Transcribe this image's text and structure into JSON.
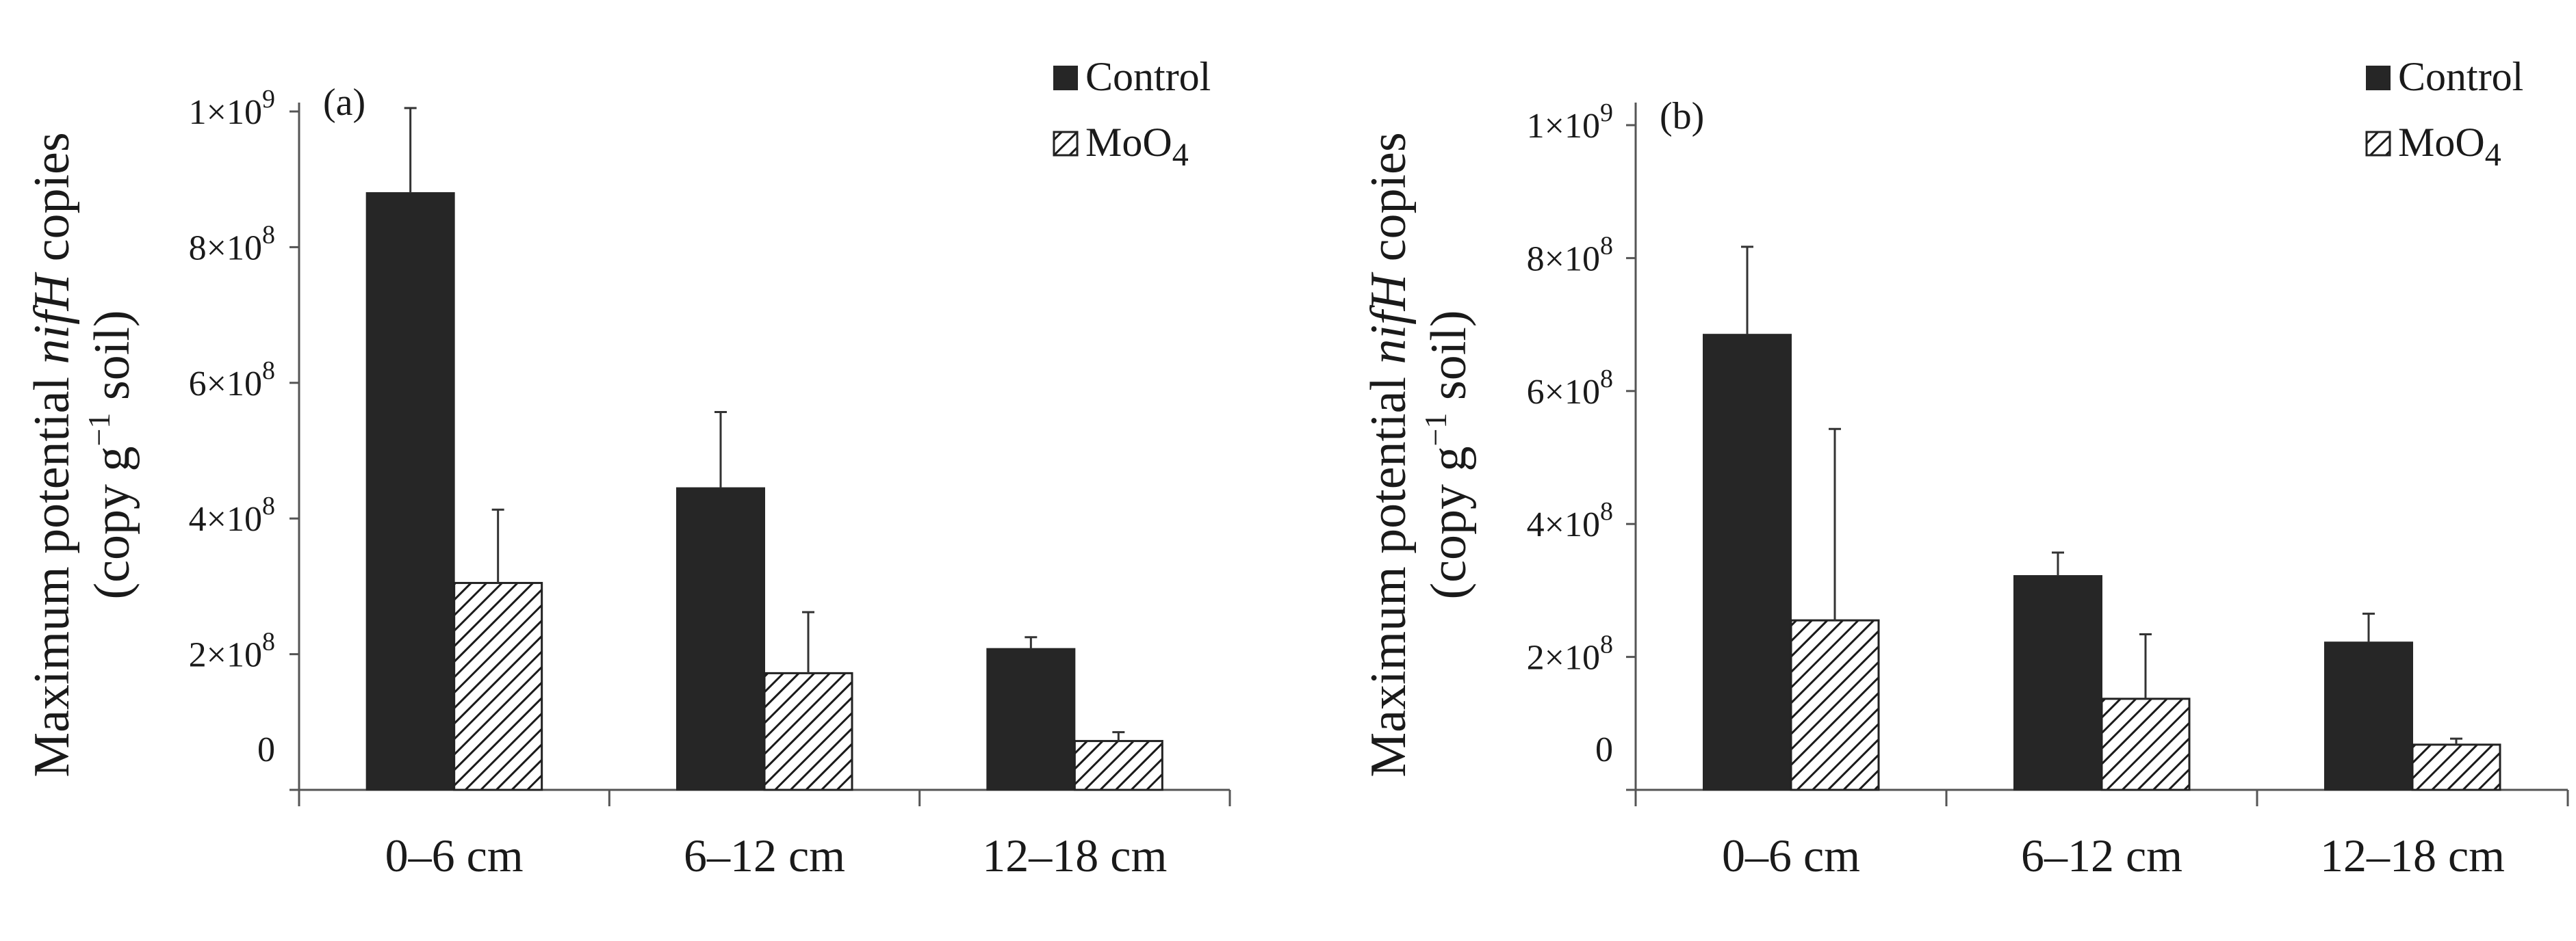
{
  "chart_data": [
    {
      "type": "bar",
      "panel_label": "(a)",
      "categories": [
        "0–6 cm",
        "6–12 cm",
        "12–18 cm"
      ],
      "series": [
        {
          "name": "Control",
          "values": [
            880000000,
            445000000,
            208000000
          ],
          "errors": [
            125000000,
            112000000,
            17000000
          ],
          "color": "#262626",
          "pattern": "solid"
        },
        {
          "name": "MoO4",
          "values": [
            305000000,
            172000000,
            72000000
          ],
          "errors": [
            108000000,
            90000000,
            13000000
          ],
          "color": "#ffffff",
          "pattern": "diagonal-hatch"
        }
      ],
      "ylabel_line1": {
        "pre": "Maximum potential ",
        "italic": "nifH",
        "post": " copies"
      },
      "ylabel_line2": {
        "pre": "(copy g",
        "sup": "−1",
        "post": " soil)"
      },
      "ytick_labels": [
        {
          "value": 0,
          "text": "0"
        },
        {
          "value": 200000000,
          "base": "2×10",
          "exp": "8"
        },
        {
          "value": 400000000,
          "base": "4×10",
          "exp": "8"
        },
        {
          "value": 600000000,
          "base": "6×10",
          "exp": "8"
        },
        {
          "value": 800000000,
          "base": "8×10",
          "exp": "8"
        },
        {
          "value": 1000000000,
          "base": "1×10",
          "exp": "9"
        }
      ],
      "ylim": [
        0,
        1000000000
      ],
      "legend": {
        "position": "top-right",
        "entries": [
          "Control",
          "MoO4"
        ]
      }
    },
    {
      "type": "bar",
      "panel_label": "(b)",
      "categories": [
        "0–6 cm",
        "6–12 cm",
        "12–18 cm"
      ],
      "series": [
        {
          "name": "Control",
          "values": [
            685000000,
            322000000,
            222000000
          ],
          "errors": [
            132000000,
            35000000,
            43000000
          ],
          "color": "#262626",
          "pattern": "solid"
        },
        {
          "name": "MoO4",
          "values": [
            255000000,
            137000000,
            68000000
          ],
          "errors": [
            288000000,
            97000000,
            9000000
          ],
          "color": "#ffffff",
          "pattern": "diagonal-hatch"
        }
      ],
      "ylabel_line1": {
        "pre": "Maximum potential ",
        "italic": "nifH",
        "post": " copies"
      },
      "ylabel_line2": {
        "pre": "(copy g",
        "sup": "−1",
        "post": " soil)"
      },
      "ytick_labels": [
        {
          "value": 0,
          "text": "0"
        },
        {
          "value": 200000000,
          "base": "2×10",
          "exp": "8"
        },
        {
          "value": 400000000,
          "base": "4×10",
          "exp": "8"
        },
        {
          "value": 600000000,
          "base": "6×10",
          "exp": "8"
        },
        {
          "value": 800000000,
          "base": "8×10",
          "exp": "8"
        },
        {
          "value": 1000000000,
          "base": "1×10",
          "exp": "9"
        }
      ],
      "ylim": [
        0,
        1000000000
      ],
      "legend": {
        "position": "top-right",
        "entries": [
          "Control",
          "MoO4"
        ]
      }
    }
  ],
  "legend_text": {
    "control": "Control",
    "moo4": {
      "base": "MoO",
      "sub": "4"
    }
  }
}
